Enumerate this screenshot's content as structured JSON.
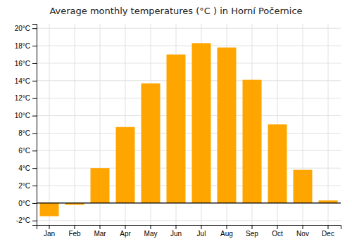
{
  "chart_data": {
    "type": "bar",
    "title": "Average monthly temperatures (°C ) in Horní Počernice",
    "categories": [
      "Jan",
      "Feb",
      "Mar",
      "Apr",
      "May",
      "Jun",
      "Jul",
      "Aug",
      "Sep",
      "Oct",
      "Nov",
      "Dec"
    ],
    "values": [
      -1.5,
      -0.2,
      4.0,
      8.7,
      13.7,
      17.0,
      18.3,
      17.8,
      14.1,
      9.0,
      3.8,
      0.3
    ],
    "color": "#FFA500",
    "ylim": [
      -2.5,
      20.5
    ],
    "yticks": [
      {
        "value": -2,
        "label": "-2°C"
      },
      {
        "value": 0,
        "label": "0°C"
      },
      {
        "value": 2,
        "label": "2°C"
      },
      {
        "value": 4,
        "label": "4°C"
      },
      {
        "value": 6,
        "label": "6°C"
      },
      {
        "value": 8,
        "label": "8°C"
      },
      {
        "value": 10,
        "label": "10°C"
      },
      {
        "value": 12,
        "label": "12°C"
      },
      {
        "value": 14,
        "label": "14°C"
      },
      {
        "value": 16,
        "label": "16°C"
      },
      {
        "value": 18,
        "label": "18°C"
      },
      {
        "value": 20,
        "label": "20°C"
      }
    ],
    "grid": true
  }
}
